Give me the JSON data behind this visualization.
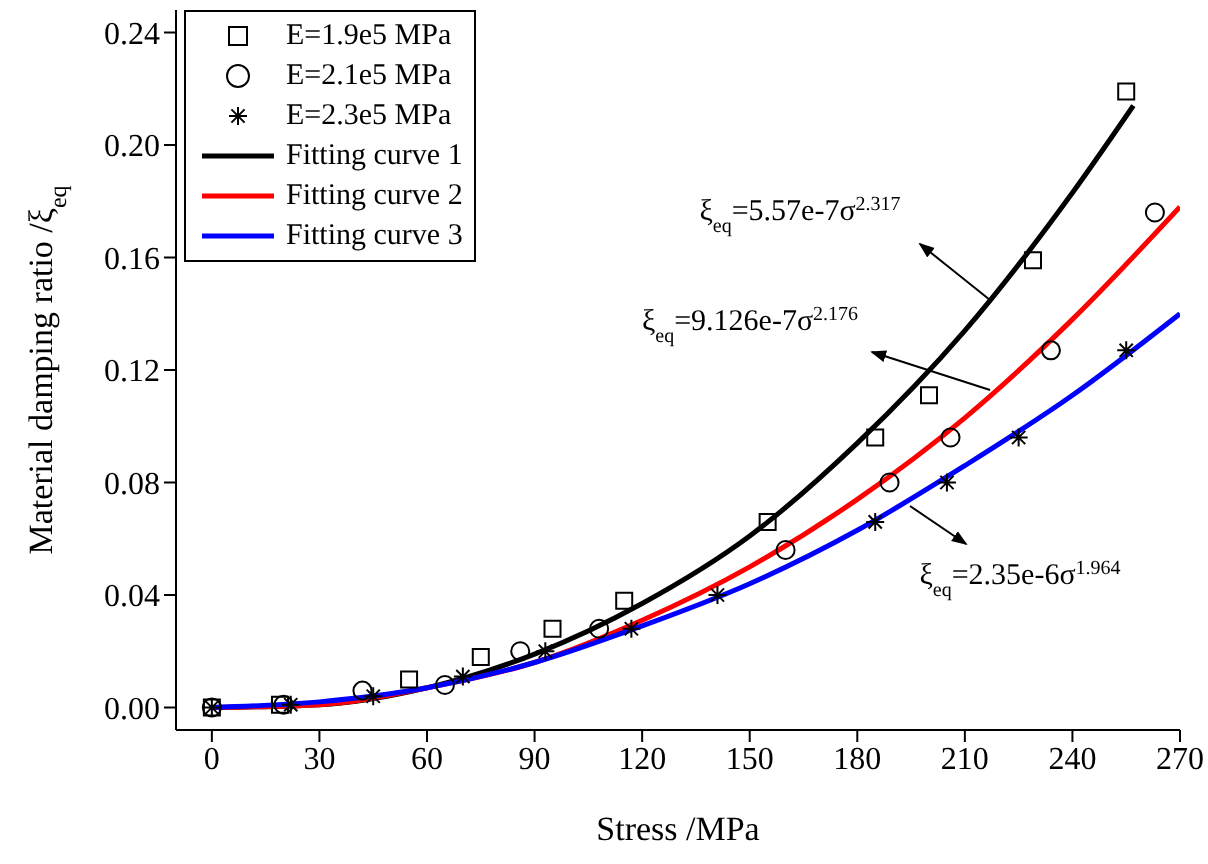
{
  "chart_data": {
    "type": "scatter",
    "xlabel": "Stress /MPa",
    "ylabel": "Material damping ratio /ξ$_{eq}$",
    "xlim": [
      -10,
      270
    ],
    "xticks": [
      0,
      30,
      60,
      90,
      120,
      150,
      180,
      210,
      240,
      270
    ],
    "ylim": [
      -0.008,
      0.248
    ],
    "yticks": [
      {
        "value": 0,
        "label": "0.00"
      },
      {
        "value": 0.04,
        "label": "0.04"
      },
      {
        "value": 0.08,
        "label": "0.08"
      },
      {
        "value": 0.12,
        "label": "0.12"
      },
      {
        "value": 0.16,
        "label": "0.16"
      },
      {
        "value": 0.2,
        "label": "0.20"
      },
      {
        "value": 0.24,
        "label": "0.24"
      }
    ],
    "grid": false,
    "legend": "top left",
    "series": [
      {
        "name": "E=1.9e5 MPa",
        "marker": "square",
        "color": "#000000",
        "x": [
          0,
          19,
          55,
          75,
          95,
          115,
          155,
          185,
          200,
          229,
          255
        ],
        "values": [
          0,
          0.001,
          0.01,
          0.018,
          0.028,
          0.038,
          0.066,
          0.096,
          0.111,
          0.159,
          0.219
        ]
      },
      {
        "name": "E=2.1e5 MPa",
        "marker": "circle",
        "color": "#000000",
        "x": [
          0,
          20,
          42,
          65,
          86,
          108,
          160,
          189,
          206,
          234,
          263
        ],
        "values": [
          0,
          0.001,
          0.006,
          0.008,
          0.02,
          0.028,
          0.056,
          0.08,
          0.096,
          0.127,
          0.176
        ]
      },
      {
        "name": "E=2.3e5 MPa",
        "marker": "cross",
        "color": "#000000",
        "x": [
          0,
          22,
          45,
          70,
          93,
          117,
          141,
          185,
          205,
          225,
          255
        ],
        "values": [
          0,
          0.001,
          0.004,
          0.011,
          0.02,
          0.028,
          0.04,
          0.066,
          0.08,
          0.096,
          0.127
        ]
      },
      {
        "name": "Fitting curve 1",
        "type": "line",
        "line_style": "solid",
        "color": "#000000",
        "x": [
          0,
          30,
          60,
          90,
          120,
          150,
          180,
          210,
          240,
          257
        ],
        "values": [
          0,
          0.001,
          0.007,
          0.019,
          0.037,
          0.061,
          0.094,
          0.134,
          0.183,
          0.214
        ]
      },
      {
        "name": "Fitting curve 2",
        "type": "line",
        "line_style": "solid",
        "color": "#ff0000",
        "x": [
          0,
          30,
          60,
          90,
          120,
          150,
          180,
          210,
          240,
          270
        ],
        "values": [
          0,
          0.001,
          0.007,
          0.016,
          0.031,
          0.05,
          0.074,
          0.103,
          0.138,
          0.178
        ]
      },
      {
        "name": "Fitting curve 3",
        "type": "line",
        "line_style": "solid",
        "color": "#0000ff",
        "x": [
          0,
          30,
          60,
          90,
          120,
          150,
          180,
          210,
          240,
          270
        ],
        "values": [
          0,
          0.002,
          0.007,
          0.016,
          0.029,
          0.044,
          0.063,
          0.086,
          0.111,
          0.14
        ]
      }
    ],
    "annotations": [
      "ξ$_{eq}$=5.57e-7σ$^{2.317}$",
      "ξ$_{eq}$=9.126e-7σ$^{2.176}$",
      "ξ$_{eq}$=2.35e-6σ$^{1.964}$"
    ]
  }
}
